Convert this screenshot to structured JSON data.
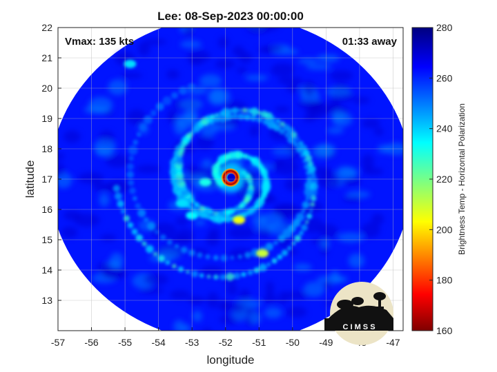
{
  "title": "Lee: 08-Sep-2023 00:00:00",
  "vmax_label": "Vmax: 135 kts",
  "time_label": "01:33 away",
  "logo": {
    "text": "C I M S S"
  },
  "chart_data": {
    "type": "heatmap",
    "title": "Lee: 08-Sep-2023 00:00:00",
    "xlabel": "longitude",
    "ylabel": "latitude",
    "xlim": [
      -57,
      -46.7
    ],
    "ylim": [
      12,
      22
    ],
    "xticks": [
      -57,
      -56,
      -55,
      -54,
      -53,
      -52,
      -51,
      -50,
      -49,
      -48,
      -47
    ],
    "yticks": [
      13,
      14,
      15,
      16,
      17,
      18,
      19,
      20,
      21,
      22
    ],
    "grid": true,
    "colorbar": {
      "label": "Brightness Temp - Horizontal Polarization",
      "range": [
        160,
        280
      ],
      "ticks": [
        160,
        180,
        200,
        220,
        240,
        260,
        280
      ],
      "colormap": "jet"
    },
    "swath": {
      "center_lon": -51.85,
      "center_lat": 17.0,
      "radius_deg": 5.4
    },
    "storm_center": {
      "lon": -51.85,
      "lat": 17.05,
      "eye_temp": 250,
      "eyewall_temp": 165
    },
    "features": [
      {
        "name": "background",
        "lon": -52,
        "lat": 17,
        "temp": 262
      },
      {
        "name": "inner-rainband",
        "lon": -52.6,
        "lat": 16.9,
        "temp": 232
      },
      {
        "name": "band-south",
        "lon": -51.6,
        "lat": 15.65,
        "temp": 205
      },
      {
        "name": "band-southeast",
        "lon": -50.9,
        "lat": 14.55,
        "temp": 210
      },
      {
        "name": "band-southwest",
        "lon": -53.0,
        "lat": 15.8,
        "temp": 235
      },
      {
        "name": "feeder-west",
        "lon": -53.3,
        "lat": 16.2,
        "temp": 238
      },
      {
        "name": "cell-northwest",
        "lon": -54.85,
        "lat": 20.8,
        "temp": 238
      }
    ]
  }
}
